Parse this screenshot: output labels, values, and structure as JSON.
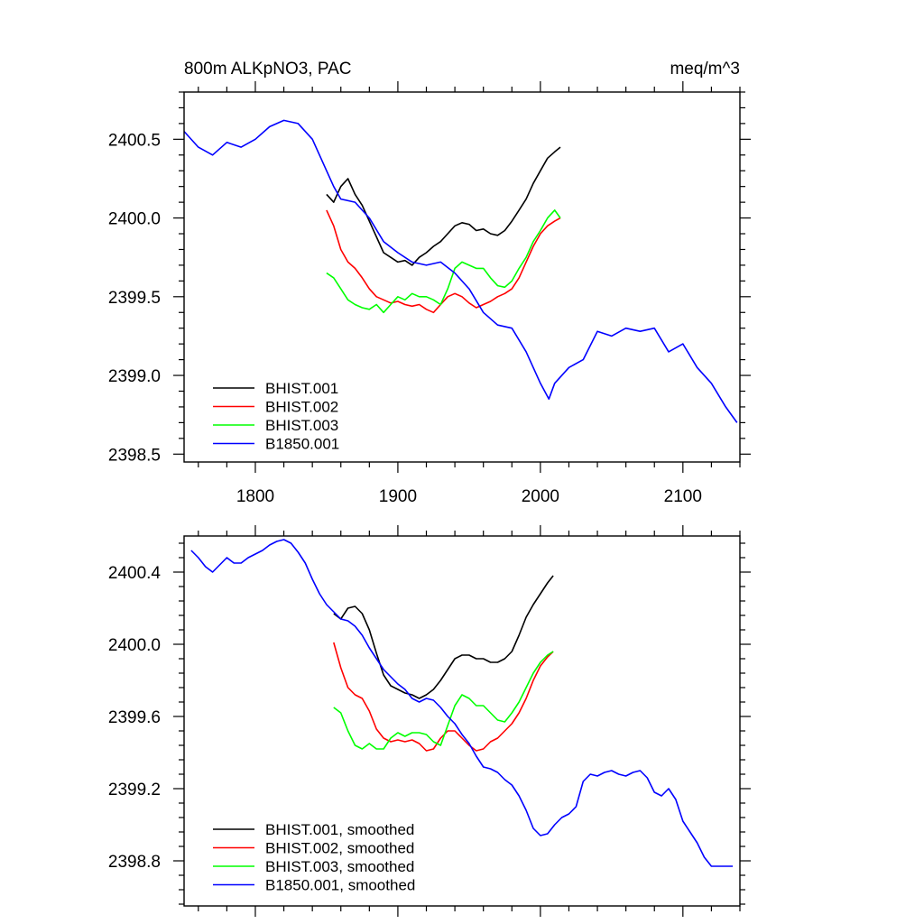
{
  "chart_data": [
    {
      "type": "line",
      "title": "800m ALKpNO3, PAC",
      "units": "meq/m^3",
      "xlim": [
        1750,
        2140
      ],
      "ylim": [
        2398.45,
        2400.8
      ],
      "xticks": [
        1800,
        1900,
        2000,
        2100
      ],
      "xtick_labels": [
        "1800",
        "1900",
        "2000",
        "2100"
      ],
      "yticks": [
        2398.5,
        2399.0,
        2399.5,
        2400.0,
        2400.5
      ],
      "ytick_labels": [
        "2398.5",
        "2399.0",
        "2399.5",
        "2400.0",
        "2400.5"
      ],
      "legend_position": "bottom-left",
      "series": [
        {
          "name": "BHIST.001",
          "color": "#000000",
          "x": [
            1850,
            1855,
            1860,
            1865,
            1870,
            1875,
            1880,
            1885,
            1890,
            1895,
            1900,
            1905,
            1910,
            1915,
            1920,
            1925,
            1930,
            1935,
            1940,
            1945,
            1950,
            1955,
            1960,
            1965,
            1970,
            1975,
            1980,
            1985,
            1990,
            1995,
            2000,
            2005,
            2010,
            2014
          ],
          "values": [
            2400.15,
            2400.1,
            2400.2,
            2400.25,
            2400.15,
            2400.08,
            2399.98,
            2399.88,
            2399.78,
            2399.75,
            2399.72,
            2399.73,
            2399.7,
            2399.75,
            2399.78,
            2399.82,
            2399.85,
            2399.9,
            2399.95,
            2399.97,
            2399.96,
            2399.92,
            2399.93,
            2399.9,
            2399.89,
            2399.92,
            2399.98,
            2400.05,
            2400.12,
            2400.22,
            2400.3,
            2400.38,
            2400.42,
            2400.45
          ]
        },
        {
          "name": "BHIST.002",
          "color": "#ff0000",
          "x": [
            1850,
            1855,
            1860,
            1865,
            1870,
            1875,
            1880,
            1885,
            1890,
            1895,
            1900,
            1905,
            1910,
            1915,
            1920,
            1925,
            1930,
            1935,
            1940,
            1945,
            1950,
            1955,
            1960,
            1965,
            1970,
            1975,
            1980,
            1985,
            1990,
            1995,
            2000,
            2005,
            2010,
            2014
          ],
          "values": [
            2400.05,
            2399.95,
            2399.8,
            2399.72,
            2399.68,
            2399.62,
            2399.55,
            2399.5,
            2399.48,
            2399.46,
            2399.47,
            2399.45,
            2399.44,
            2399.45,
            2399.42,
            2399.4,
            2399.45,
            2399.5,
            2399.52,
            2399.5,
            2399.46,
            2399.43,
            2399.45,
            2399.47,
            2399.5,
            2399.52,
            2399.55,
            2399.62,
            2399.72,
            2399.82,
            2399.9,
            2399.95,
            2399.98,
            2400.0
          ]
        },
        {
          "name": "BHIST.003",
          "color": "#00ff00",
          "x": [
            1850,
            1855,
            1860,
            1865,
            1870,
            1875,
            1880,
            1885,
            1890,
            1895,
            1900,
            1905,
            1910,
            1915,
            1920,
            1925,
            1930,
            1935,
            1940,
            1945,
            1950,
            1955,
            1960,
            1965,
            1970,
            1975,
            1980,
            1985,
            1990,
            1995,
            2000,
            2005,
            2010,
            2014
          ],
          "values": [
            2399.65,
            2399.62,
            2399.55,
            2399.48,
            2399.45,
            2399.43,
            2399.42,
            2399.45,
            2399.4,
            2399.45,
            2399.5,
            2399.48,
            2399.52,
            2399.5,
            2399.5,
            2399.48,
            2399.45,
            2399.55,
            2399.68,
            2399.72,
            2399.7,
            2399.68,
            2399.68,
            2399.62,
            2399.57,
            2399.56,
            2399.6,
            2399.68,
            2399.75,
            2399.85,
            2399.92,
            2400.0,
            2400.05,
            2400.0
          ]
        },
        {
          "name": "B1850.001",
          "color": "#0000ff",
          "x": [
            1750,
            1760,
            1770,
            1780,
            1790,
            1800,
            1810,
            1820,
            1830,
            1840,
            1850,
            1855,
            1860,
            1870,
            1880,
            1890,
            1900,
            1910,
            1920,
            1930,
            1940,
            1950,
            1960,
            1970,
            1980,
            1990,
            2000,
            2006,
            2010,
            2020,
            2030,
            2040,
            2050,
            2060,
            2070,
            2080,
            2090,
            2100,
            2110,
            2120,
            2130,
            2138
          ],
          "values": [
            2400.55,
            2400.45,
            2400.4,
            2400.48,
            2400.45,
            2400.5,
            2400.58,
            2400.62,
            2400.6,
            2400.5,
            2400.3,
            2400.2,
            2400.12,
            2400.1,
            2400.0,
            2399.85,
            2399.78,
            2399.72,
            2399.7,
            2399.72,
            2399.65,
            2399.55,
            2399.4,
            2399.32,
            2399.3,
            2399.15,
            2398.95,
            2398.85,
            2398.95,
            2399.05,
            2399.1,
            2399.28,
            2399.25,
            2399.3,
            2399.28,
            2399.3,
            2399.15,
            2399.2,
            2399.05,
            2398.95,
            2398.8,
            2398.7
          ]
        }
      ]
    },
    {
      "type": "line",
      "title": "",
      "xlim": [
        1750,
        2140
      ],
      "ylim": [
        2398.55,
        2400.6
      ],
      "xticks": [
        1800,
        1900,
        2000,
        2100
      ],
      "xtick_labels": [
        "",
        "",
        "",
        ""
      ],
      "yticks": [
        2398.8,
        2399.2,
        2399.6,
        2400.0,
        2400.4
      ],
      "ytick_labels": [
        "2398.8",
        "2399.2",
        "2399.6",
        "2400.0",
        "2400.4"
      ],
      "legend_position": "bottom-left",
      "series": [
        {
          "name": "BHIST.001, smoothed",
          "color": "#000000",
          "x": [
            1855,
            1860,
            1865,
            1870,
            1875,
            1880,
            1885,
            1890,
            1895,
            1900,
            1905,
            1910,
            1915,
            1920,
            1925,
            1930,
            1935,
            1940,
            1945,
            1950,
            1955,
            1960,
            1965,
            1970,
            1975,
            1980,
            1985,
            1990,
            1995,
            2000,
            2005,
            2009
          ],
          "values": [
            2400.17,
            2400.14,
            2400.2,
            2400.21,
            2400.17,
            2400.08,
            2399.95,
            2399.83,
            2399.77,
            2399.75,
            2399.73,
            2399.72,
            2399.7,
            2399.72,
            2399.75,
            2399.8,
            2399.86,
            2399.92,
            2399.94,
            2399.94,
            2399.92,
            2399.92,
            2399.9,
            2399.9,
            2399.92,
            2399.96,
            2400.05,
            2400.15,
            2400.22,
            2400.28,
            2400.34,
            2400.38
          ]
        },
        {
          "name": "BHIST.002, smoothed",
          "color": "#ff0000",
          "x": [
            1855,
            1860,
            1865,
            1870,
            1875,
            1880,
            1885,
            1890,
            1895,
            1900,
            1905,
            1910,
            1915,
            1920,
            1925,
            1930,
            1935,
            1940,
            1945,
            1950,
            1955,
            1960,
            1965,
            1970,
            1975,
            1980,
            1985,
            1990,
            1995,
            2000,
            2005,
            2009
          ],
          "values": [
            2400.01,
            2399.87,
            2399.76,
            2399.72,
            2399.7,
            2399.63,
            2399.53,
            2399.48,
            2399.46,
            2399.47,
            2399.46,
            2399.47,
            2399.45,
            2399.41,
            2399.42,
            2399.48,
            2399.52,
            2399.52,
            2399.48,
            2399.44,
            2399.41,
            2399.42,
            2399.46,
            2399.48,
            2399.52,
            2399.56,
            2399.62,
            2399.7,
            2399.8,
            2399.88,
            2399.93,
            2399.96
          ]
        },
        {
          "name": "BHIST.003, smoothed",
          "color": "#00ff00",
          "x": [
            1855,
            1860,
            1865,
            1870,
            1875,
            1880,
            1885,
            1890,
            1895,
            1900,
            1905,
            1910,
            1915,
            1920,
            1925,
            1930,
            1935,
            1940,
            1945,
            1950,
            1955,
            1960,
            1965,
            1970,
            1975,
            1980,
            1985,
            1990,
            1995,
            2000,
            2005,
            2009
          ],
          "values": [
            2399.65,
            2399.62,
            2399.52,
            2399.44,
            2399.42,
            2399.45,
            2399.42,
            2399.42,
            2399.48,
            2399.51,
            2399.49,
            2399.51,
            2399.51,
            2399.5,
            2399.46,
            2399.44,
            2399.55,
            2399.66,
            2399.72,
            2399.7,
            2399.66,
            2399.66,
            2399.62,
            2399.58,
            2399.57,
            2399.62,
            2399.68,
            2399.76,
            2399.84,
            2399.9,
            2399.94,
            2399.96
          ]
        },
        {
          "name": "B1850.001, smoothed",
          "color": "#0000ff",
          "x": [
            1755,
            1760,
            1765,
            1770,
            1775,
            1780,
            1785,
            1790,
            1795,
            1800,
            1805,
            1810,
            1815,
            1820,
            1825,
            1830,
            1835,
            1840,
            1845,
            1850,
            1855,
            1860,
            1865,
            1870,
            1875,
            1880,
            1885,
            1890,
            1895,
            1900,
            1905,
            1910,
            1915,
            1920,
            1925,
            1930,
            1935,
            1940,
            1945,
            1950,
            1955,
            1960,
            1965,
            1970,
            1975,
            1980,
            1985,
            1990,
            1995,
            2000,
            2005,
            2010,
            2015,
            2020,
            2025,
            2030,
            2035,
            2040,
            2045,
            2050,
            2055,
            2060,
            2065,
            2070,
            2075,
            2080,
            2085,
            2090,
            2095,
            2100,
            2105,
            2110,
            2115,
            2120,
            2125,
            2130,
            2135
          ],
          "values": [
            2400.52,
            2400.48,
            2400.43,
            2400.4,
            2400.44,
            2400.48,
            2400.45,
            2400.45,
            2400.48,
            2400.5,
            2400.52,
            2400.55,
            2400.57,
            2400.58,
            2400.56,
            2400.51,
            2400.45,
            2400.36,
            2400.28,
            2400.22,
            2400.18,
            2400.14,
            2400.13,
            2400.1,
            2400.05,
            2399.98,
            2399.92,
            2399.86,
            2399.82,
            2399.78,
            2399.75,
            2399.7,
            2399.68,
            2399.7,
            2399.69,
            2399.65,
            2399.6,
            2399.56,
            2399.5,
            2399.45,
            2399.38,
            2399.32,
            2399.31,
            2399.29,
            2399.25,
            2399.22,
            2399.16,
            2399.08,
            2398.98,
            2398.94,
            2398.95,
            2399.0,
            2399.04,
            2399.06,
            2399.1,
            2399.24,
            2399.28,
            2399.27,
            2399.29,
            2399.3,
            2399.28,
            2399.27,
            2399.29,
            2399.3,
            2399.26,
            2399.18,
            2399.16,
            2399.2,
            2399.14,
            2399.02,
            2398.96,
            2398.9,
            2398.82,
            2398.77,
            2398.77,
            2398.77,
            2398.77
          ]
        }
      ]
    }
  ]
}
